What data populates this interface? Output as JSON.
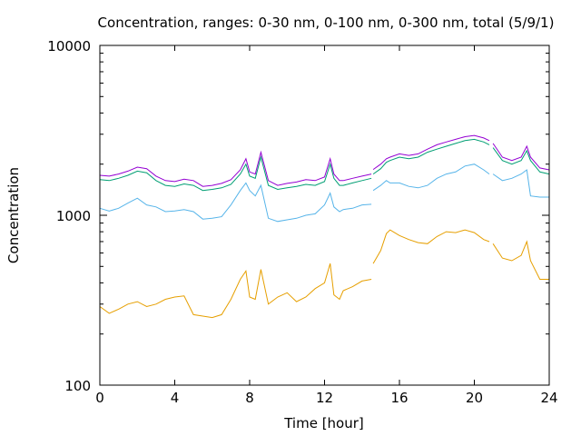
{
  "chart_data": {
    "type": "line",
    "title": "Concentration, ranges: 0-30 nm, 0-100 nm, 0-300 nm, total (5/9/1)",
    "xlabel": "Time [hour]",
    "ylabel": "Concentration",
    "xlim": [
      0,
      24
    ],
    "ylim": [
      100,
      10000
    ],
    "yscale": "log",
    "xticks": [
      "0",
      "4",
      "8",
      "12",
      "16",
      "20",
      "24"
    ],
    "yticks": [
      "100",
      "1000",
      "10000"
    ],
    "grid": false,
    "legend": "none",
    "colors": [
      "#e69f00",
      "#56b4e9",
      "#009e73",
      "#9400d3"
    ],
    "series": [
      {
        "x": [
          0,
          0.5,
          1,
          1.5,
          2,
          2.5,
          3,
          3.5,
          4,
          4.5,
          5,
          5.5,
          6,
          6.5,
          7,
          7.5,
          7.8,
          8.0,
          8.3,
          8.6,
          9,
          9.5,
          10,
          10.5,
          11,
          11.5,
          12,
          12.3,
          12.5,
          12.8,
          13,
          13.5,
          14,
          14.5,
          null,
          14.6,
          15,
          15.3,
          15.5,
          16,
          16.5,
          17,
          17.5,
          18,
          18.5,
          19,
          19.5,
          20,
          20.5,
          20.8,
          null,
          21,
          21.5,
          22,
          22.5,
          22.8,
          23,
          23.5,
          24
        ],
        "y": [
          290,
          265,
          280,
          300,
          310,
          290,
          300,
          320,
          330,
          335,
          260,
          255,
          250,
          260,
          320,
          420,
          470,
          330,
          320,
          480,
          300,
          330,
          350,
          310,
          330,
          370,
          400,
          520,
          340,
          320,
          360,
          380,
          410,
          420,
          null,
          520,
          620,
          780,
          820,
          760,
          720,
          690,
          680,
          750,
          800,
          790,
          820,
          790,
          720,
          700,
          null,
          680,
          560,
          540,
          580,
          700,
          540,
          420,
          420
        ]
      },
      {
        "x": [
          0,
          0.5,
          1,
          1.5,
          2,
          2.5,
          3,
          3.5,
          4,
          4.5,
          5,
          5.5,
          6,
          6.5,
          7,
          7.5,
          7.8,
          8.0,
          8.3,
          8.6,
          9,
          9.5,
          10,
          10.5,
          11,
          11.5,
          12,
          12.3,
          12.5,
          12.8,
          13,
          13.5,
          14,
          14.5,
          null,
          14.6,
          15,
          15.3,
          15.5,
          16,
          16.5,
          17,
          17.5,
          18,
          18.5,
          19,
          19.5,
          20,
          20.5,
          20.8,
          null,
          21,
          21.5,
          22,
          22.5,
          22.8,
          23,
          23.5,
          24
        ],
        "y": [
          1100,
          1060,
          1100,
          1180,
          1260,
          1150,
          1120,
          1050,
          1060,
          1080,
          1050,
          950,
          960,
          980,
          1150,
          1400,
          1550,
          1400,
          1300,
          1500,
          960,
          920,
          940,
          960,
          1000,
          1020,
          1150,
          1350,
          1120,
          1050,
          1080,
          1100,
          1150,
          1160,
          null,
          1400,
          1500,
          1600,
          1550,
          1550,
          1480,
          1450,
          1500,
          1650,
          1750,
          1800,
          1950,
          2000,
          1850,
          1750,
          null,
          1750,
          1600,
          1650,
          1750,
          1850,
          1300,
          1280,
          1280
        ]
      },
      {
        "x": [
          0,
          0.5,
          1,
          1.5,
          2,
          2.5,
          3,
          3.5,
          4,
          4.5,
          5,
          5.5,
          6,
          6.5,
          7,
          7.5,
          7.8,
          8.0,
          8.3,
          8.6,
          9,
          9.5,
          10,
          10.5,
          11,
          11.5,
          12,
          12.3,
          12.5,
          12.8,
          13,
          13.5,
          14,
          14.5,
          null,
          14.6,
          15,
          15.3,
          15.5,
          16,
          16.5,
          17,
          17.5,
          18,
          18.5,
          19,
          19.5,
          20,
          20.5,
          20.8,
          null,
          21,
          21.5,
          22,
          22.5,
          22.8,
          23,
          23.5,
          24
        ],
        "y": [
          1620,
          1600,
          1650,
          1720,
          1820,
          1780,
          1600,
          1500,
          1480,
          1530,
          1500,
          1400,
          1420,
          1450,
          1520,
          1750,
          2000,
          1700,
          1650,
          2200,
          1500,
          1420,
          1450,
          1480,
          1520,
          1500,
          1580,
          2000,
          1650,
          1500,
          1500,
          1550,
          1600,
          1650,
          null,
          1750,
          1880,
          2050,
          2100,
          2200,
          2150,
          2200,
          2350,
          2450,
          2550,
          2650,
          2750,
          2800,
          2700,
          2600,
          null,
          2500,
          2100,
          2000,
          2100,
          2400,
          2100,
          1800,
          1750
        ]
      },
      {
        "x": [
          0,
          0.5,
          1,
          1.5,
          2,
          2.5,
          3,
          3.5,
          4,
          4.5,
          5,
          5.5,
          6,
          6.5,
          7,
          7.5,
          7.8,
          8.0,
          8.3,
          8.6,
          9,
          9.5,
          10,
          10.5,
          11,
          11.5,
          12,
          12.3,
          12.5,
          12.8,
          13,
          13.5,
          14,
          14.5,
          null,
          14.6,
          15,
          15.3,
          15.5,
          16,
          16.5,
          17,
          17.5,
          18,
          18.5,
          19,
          19.5,
          20,
          20.5,
          20.8,
          null,
          21,
          21.5,
          22,
          22.5,
          22.8,
          23,
          23.5,
          24
        ],
        "y": [
          1720,
          1700,
          1750,
          1820,
          1920,
          1880,
          1700,
          1600,
          1580,
          1630,
          1600,
          1480,
          1500,
          1540,
          1620,
          1850,
          2150,
          1800,
          1750,
          2350,
          1600,
          1500,
          1540,
          1570,
          1620,
          1600,
          1680,
          2150,
          1750,
          1600,
          1600,
          1650,
          1700,
          1750,
          null,
          1860,
          2000,
          2150,
          2200,
          2300,
          2250,
          2300,
          2450,
          2600,
          2700,
          2800,
          2900,
          2950,
          2850,
          2750,
          null,
          2650,
          2200,
          2100,
          2200,
          2550,
          2200,
          1900,
          1850
        ]
      }
    ]
  }
}
